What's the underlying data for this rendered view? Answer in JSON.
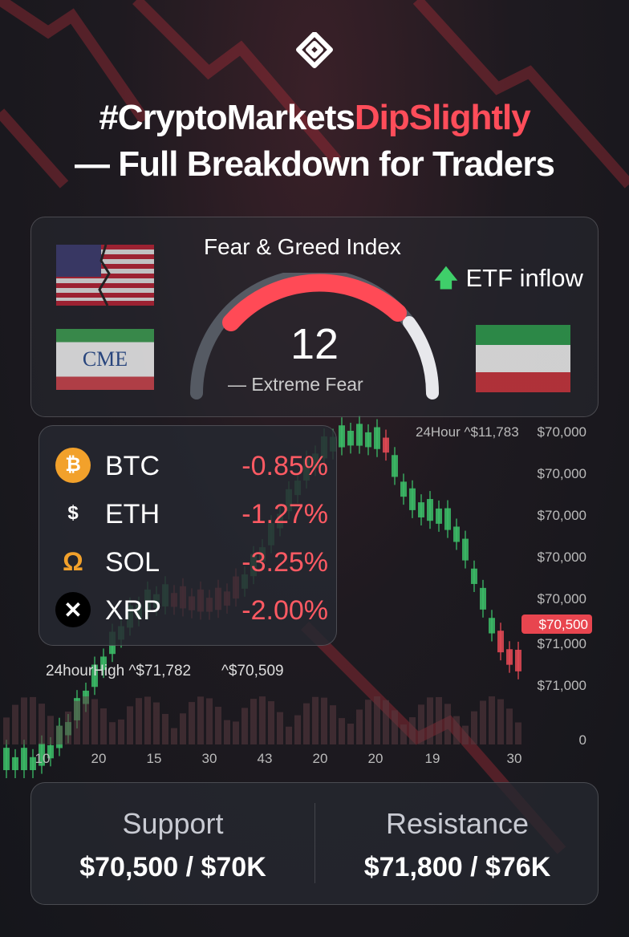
{
  "header": {
    "title_start": "#CryptoMarkets",
    "title_highlight": "DipSlightly",
    "title_line2": "— Full Breakdown for Traders"
  },
  "gauge": {
    "title": "Fear & Greed Index",
    "value": "12",
    "label": "— Extreme Fear"
  },
  "etf": "ETF inflow",
  "cme": "CME",
  "coins": [
    {
      "symbol": "BTC",
      "change": "-0.85%"
    },
    {
      "symbol": "ETH",
      "change": "-1.27%"
    },
    {
      "symbol": "SOL",
      "change": "-3.25%"
    },
    {
      "symbol": "XRP",
      "change": "-2.00%"
    }
  ],
  "chart": {
    "top_label": "24Hour ^$11,783",
    "price_labels": [
      "$70,000",
      "$70,000",
      "$70,000",
      "$70,000",
      "$70,000",
      "$71,000",
      "$71,000",
      "0"
    ],
    "current_price": "$70,500",
    "high_label": "24hourHigh ^$71,782",
    "low_label": "^$70,509",
    "x_labels": [
      "10",
      "20",
      "15",
      "30",
      "43",
      "20",
      "20",
      "19",
      "30"
    ]
  },
  "levels": {
    "support_title": "Support",
    "support_value": "$70,500 / $70K",
    "resistance_title": "Resistance",
    "resistance_value": "$71,800 / $76K"
  }
}
